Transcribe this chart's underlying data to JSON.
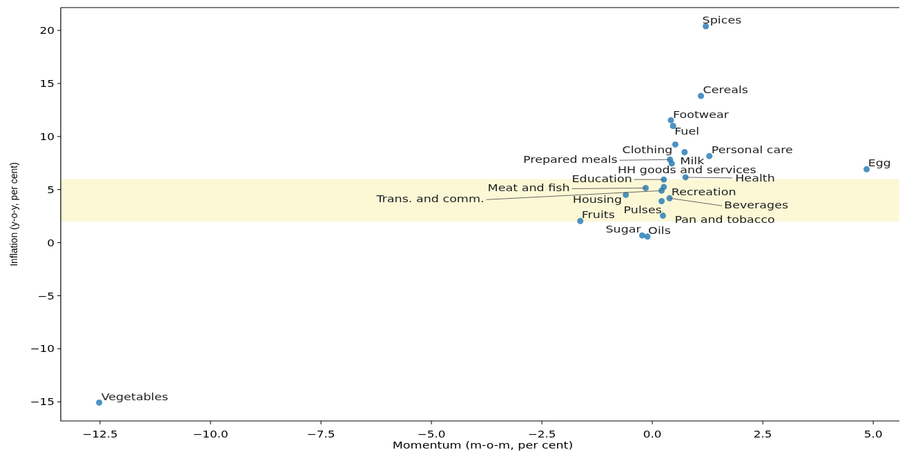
{
  "chart_data": {
    "type": "scatter",
    "xlabel": "Momentum (m-o-m, per cent)",
    "ylabel": "Inflation (y-o-y, per cent)",
    "xlim": [
      -13.39,
      5.59
    ],
    "ylim": [
      -16.8,
      22.15
    ],
    "xticks": [
      {
        "value": -12.5,
        "label": "−12.5"
      },
      {
        "value": -10,
        "label": "−10.0"
      },
      {
        "value": -7.5,
        "label": "−7.5"
      },
      {
        "value": -5,
        "label": "−5.0"
      },
      {
        "value": -2.5,
        "label": "−2.5"
      },
      {
        "value": 0,
        "label": "0.0"
      },
      {
        "value": 2.5,
        "label": "2.5"
      },
      {
        "value": 5,
        "label": "5.0"
      }
    ],
    "yticks": [
      {
        "value": -15,
        "label": "−15"
      },
      {
        "value": -10,
        "label": "−10"
      },
      {
        "value": -5,
        "label": "−5"
      },
      0,
      5,
      10,
      15,
      20
    ],
    "bands": [
      {
        "axis": "y",
        "from": 2,
        "to": 6,
        "color": "#fcf8d6"
      }
    ],
    "series": [
      {
        "color": "#1f77b4",
        "x": [
          1.21,
          1.1,
          0.42,
          0.47,
          0.52,
          0.73,
          1.29,
          0.4,
          0.44,
          4.85,
          0.75,
          0.26,
          -0.15,
          0.26,
          0.21,
          -0.6,
          0.39,
          0.21,
          0.24,
          -1.63,
          -0.23,
          -0.11,
          -12.52
        ],
        "values": [
          20.39,
          13.83,
          11.54,
          11.0,
          9.25,
          8.53,
          8.16,
          7.83,
          7.46,
          6.92,
          6.16,
          5.95,
          5.15,
          5.25,
          4.9,
          4.5,
          4.19,
          3.91,
          2.54,
          2.04,
          0.68,
          0.57,
          -15.07
        ]
      }
    ],
    "annotations": [
      {
        "text": "Spices",
        "x": 1.21,
        "y": 20.39
      },
      {
        "text": "Cereals",
        "x": 1.1,
        "y": 13.83
      },
      {
        "text": "Footwear",
        "x": 0.42,
        "y": 11.54
      },
      {
        "text": "Fuel",
        "x": 0.47,
        "y": 11.0
      },
      {
        "text": "Clothing",
        "x": 0.52,
        "y": 9.25
      },
      {
        "text": "HH goods and services",
        "x": 0.73,
        "y": 8.53
      },
      {
        "text": "Personal care",
        "x": 1.29,
        "y": 8.16
      },
      {
        "text": "Prepared meals",
        "x": 0.4,
        "y": 7.83
      },
      {
        "text": "Milk",
        "x": 0.44,
        "y": 7.46
      },
      {
        "text": "Egg",
        "x": 4.85,
        "y": 6.92
      },
      {
        "text": "Health",
        "x": 0.75,
        "y": 6.16
      },
      {
        "text": "Education",
        "x": 0.26,
        "y": 5.95
      },
      {
        "text": "Meat and fish",
        "x": -0.15,
        "y": 5.15
      },
      {
        "text": "Recreation",
        "x": 0.26,
        "y": 5.25
      },
      {
        "text": "Trans. and comm.",
        "x": 0.21,
        "y": 4.9
      },
      {
        "text": "Housing",
        "x": -0.6,
        "y": 4.5
      },
      {
        "text": "Beverages",
        "x": 0.39,
        "y": 4.19
      },
      {
        "text": "Pulses",
        "x": 0.21,
        "y": 3.91
      },
      {
        "text": "Pan and tobacco",
        "x": 0.24,
        "y": 2.54
      },
      {
        "text": "Fruits",
        "x": -1.63,
        "y": 2.04
      },
      {
        "text": "Sugar",
        "x": -0.23,
        "y": 0.68
      },
      {
        "text": "Oils",
        "x": -0.11,
        "y": 0.57
      },
      {
        "text": "Vegetables",
        "x": -12.52,
        "y": -15.07
      }
    ]
  }
}
